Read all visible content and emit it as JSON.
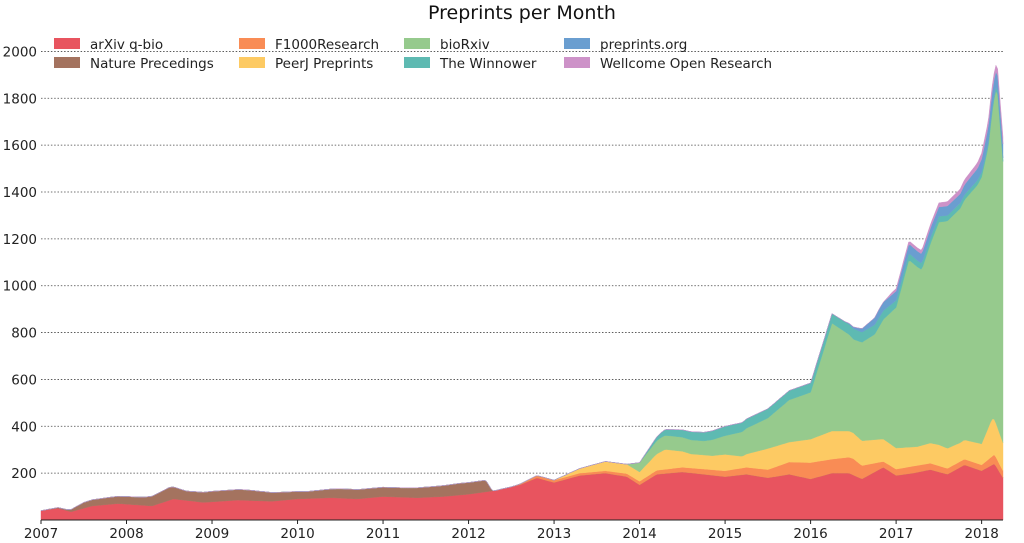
{
  "chart_data": {
    "type": "area",
    "stacked": true,
    "title": "Preprints per Month",
    "xlabel": "",
    "ylabel": "",
    "xlim": [
      2007.0,
      2018.25
    ],
    "ylim": [
      0,
      2100
    ],
    "x_ticks": [
      2007,
      2008,
      2009,
      2010,
      2011,
      2012,
      2013,
      2014,
      2015,
      2016,
      2017,
      2018
    ],
    "y_ticks": [
      200,
      400,
      600,
      800,
      1000,
      1200,
      1400,
      1600,
      1800,
      2000
    ],
    "grid": "horizontal",
    "legend": "top, 4 columns",
    "series": [
      {
        "name": "arXiv q-bio",
        "color": "#e8545f",
        "points": [
          [
            2007.0,
            40
          ],
          [
            2007.2,
            50
          ],
          [
            2007.35,
            35
          ],
          [
            2007.6,
            60
          ],
          [
            2007.9,
            70
          ],
          [
            2008.3,
            60
          ],
          [
            2008.55,
            90
          ],
          [
            2008.9,
            75
          ],
          [
            2009.3,
            85
          ],
          [
            2009.7,
            80
          ],
          [
            2010.0,
            90
          ],
          [
            2010.4,
            95
          ],
          [
            2010.7,
            90
          ],
          [
            2011.0,
            100
          ],
          [
            2011.4,
            95
          ],
          [
            2011.7,
            100
          ],
          [
            2012.0,
            110
          ],
          [
            2012.3,
            125
          ],
          [
            2012.6,
            150
          ],
          [
            2012.8,
            180
          ],
          [
            2013.0,
            160
          ],
          [
            2013.3,
            190
          ],
          [
            2013.6,
            200
          ],
          [
            2013.85,
            185
          ],
          [
            2014.0,
            150
          ],
          [
            2014.2,
            195
          ],
          [
            2014.5,
            205
          ],
          [
            2014.75,
            195
          ],
          [
            2015.0,
            185
          ],
          [
            2015.25,
            195
          ],
          [
            2015.5,
            180
          ],
          [
            2015.75,
            195
          ],
          [
            2016.0,
            175
          ],
          [
            2016.25,
            200
          ],
          [
            2016.45,
            200
          ],
          [
            2016.6,
            175
          ],
          [
            2016.85,
            225
          ],
          [
            2017.0,
            190
          ],
          [
            2017.2,
            200
          ],
          [
            2017.4,
            215
          ],
          [
            2017.6,
            195
          ],
          [
            2017.8,
            235
          ],
          [
            2018.0,
            210
          ],
          [
            2018.15,
            240
          ],
          [
            2018.25,
            180
          ]
        ]
      },
      {
        "name": "Nature Precedings",
        "color": "#a4735f",
        "points": [
          [
            2007.0,
            0
          ],
          [
            2007.3,
            5
          ],
          [
            2007.5,
            25
          ],
          [
            2007.8,
            30
          ],
          [
            2008.2,
            35
          ],
          [
            2008.5,
            55
          ],
          [
            2008.7,
            40
          ],
          [
            2009.0,
            45
          ],
          [
            2009.4,
            45
          ],
          [
            2009.8,
            35
          ],
          [
            2010.1,
            30
          ],
          [
            2010.5,
            40
          ],
          [
            2010.9,
            40
          ],
          [
            2011.2,
            40
          ],
          [
            2011.6,
            45
          ],
          [
            2011.9,
            50
          ],
          [
            2012.2,
            50
          ],
          [
            2012.28,
            0
          ],
          [
            2018.25,
            0
          ]
        ]
      },
      {
        "name": "F1000Research",
        "color": "#f98c55",
        "points": [
          [
            2007.0,
            0
          ],
          [
            2012.5,
            0
          ],
          [
            2012.8,
            10
          ],
          [
            2013.2,
            10
          ],
          [
            2013.6,
            10
          ],
          [
            2014.0,
            15
          ],
          [
            2014.5,
            20
          ],
          [
            2015.0,
            25
          ],
          [
            2015.5,
            35
          ],
          [
            2016.0,
            70
          ],
          [
            2016.25,
            60
          ],
          [
            2016.5,
            70
          ],
          [
            2016.85,
            25
          ],
          [
            2017.2,
            30
          ],
          [
            2017.6,
            25
          ],
          [
            2018.0,
            25
          ],
          [
            2018.15,
            40
          ],
          [
            2018.25,
            30
          ]
        ]
      },
      {
        "name": "PeerJ Preprints",
        "color": "#fdca63",
        "points": [
          [
            2007.0,
            0
          ],
          [
            2013.0,
            0
          ],
          [
            2013.3,
            20
          ],
          [
            2013.6,
            40
          ],
          [
            2014.0,
            40
          ],
          [
            2014.3,
            85
          ],
          [
            2014.6,
            60
          ],
          [
            2014.85,
            60
          ],
          [
            2015.0,
            70
          ],
          [
            2015.2,
            50
          ],
          [
            2015.5,
            90
          ],
          [
            2015.75,
            85
          ],
          [
            2016.0,
            100
          ],
          [
            2016.25,
            120
          ],
          [
            2016.5,
            110
          ],
          [
            2016.75,
            100
          ],
          [
            2017.0,
            90
          ],
          [
            2017.25,
            80
          ],
          [
            2017.5,
            90
          ],
          [
            2017.75,
            80
          ],
          [
            2018.0,
            90
          ],
          [
            2018.12,
            160
          ],
          [
            2018.25,
            120
          ]
        ]
      },
      {
        "name": "bioRxiv",
        "color": "#96ca8d",
        "points": [
          [
            2007.0,
            0
          ],
          [
            2013.85,
            0
          ],
          [
            2014.0,
            40
          ],
          [
            2014.25,
            60
          ],
          [
            2014.5,
            60
          ],
          [
            2014.75,
            60
          ],
          [
            2015.0,
            80
          ],
          [
            2015.25,
            110
          ],
          [
            2015.5,
            130
          ],
          [
            2015.75,
            180
          ],
          [
            2016.0,
            200
          ],
          [
            2016.25,
            460
          ],
          [
            2016.5,
            400
          ],
          [
            2016.75,
            450
          ],
          [
            2017.0,
            600
          ],
          [
            2017.15,
            800
          ],
          [
            2017.3,
            750
          ],
          [
            2017.5,
            950
          ],
          [
            2017.75,
            1000
          ],
          [
            2017.95,
            1100
          ],
          [
            2018.08,
            1200
          ],
          [
            2018.18,
            1450
          ],
          [
            2018.25,
            1200
          ]
        ]
      },
      {
        "name": "The Winnower",
        "color": "#5ebab2",
        "points": [
          [
            2007.0,
            0
          ],
          [
            2014.0,
            0
          ],
          [
            2014.3,
            25
          ],
          [
            2014.6,
            35
          ],
          [
            2015.0,
            40
          ],
          [
            2015.5,
            40
          ],
          [
            2015.9,
            40
          ],
          [
            2016.2,
            40
          ],
          [
            2016.5,
            45
          ],
          [
            2016.8,
            40
          ],
          [
            2017.0,
            30
          ],
          [
            2017.5,
            25
          ],
          [
            2018.0,
            20
          ],
          [
            2018.25,
            15
          ]
        ]
      },
      {
        "name": "preprints.org",
        "color": "#6a9ed0",
        "points": [
          [
            2007.0,
            0
          ],
          [
            2016.4,
            0
          ],
          [
            2016.6,
            15
          ],
          [
            2016.8,
            35
          ],
          [
            2017.0,
            40
          ],
          [
            2017.2,
            40
          ],
          [
            2017.5,
            40
          ],
          [
            2017.75,
            40
          ],
          [
            2017.95,
            50
          ],
          [
            2018.1,
            70
          ],
          [
            2018.25,
            60
          ]
        ]
      },
      {
        "name": "Wellcome Open Research",
        "color": "#cd92c8",
        "points": [
          [
            2007.0,
            0
          ],
          [
            2016.85,
            0
          ],
          [
            2016.95,
            10
          ],
          [
            2017.3,
            15
          ],
          [
            2017.7,
            20
          ],
          [
            2018.0,
            25
          ],
          [
            2018.25,
            30
          ]
        ]
      }
    ]
  }
}
